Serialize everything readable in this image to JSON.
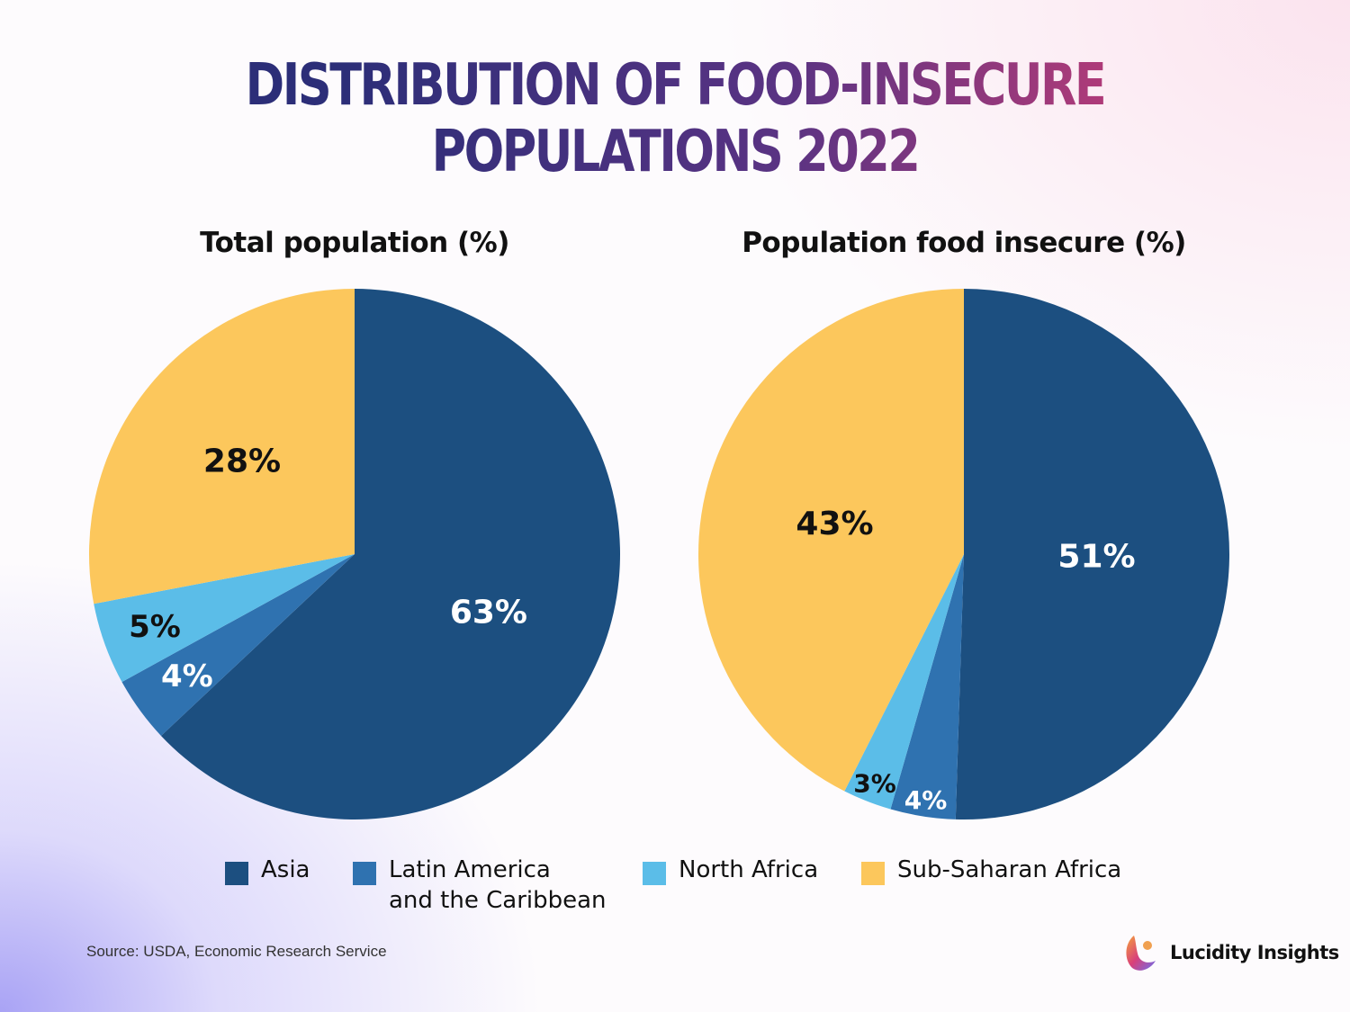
{
  "title_lines": [
    "DISTRIBUTION OF FOOD-INSECURE",
    "POPULATIONS 2022"
  ],
  "chart_data": [
    {
      "type": "pie",
      "title": "Total population (%)",
      "categories": [
        "Asia",
        "Latin America and the Caribbean",
        "North Africa",
        "Sub-Saharan Africa"
      ],
      "values": [
        63,
        4,
        5,
        28
      ],
      "labels": [
        "63%",
        "4%",
        "5%",
        "28%"
      ]
    },
    {
      "type": "pie",
      "title": "Population food insecure (%)",
      "categories": [
        "Asia",
        "Latin America and the Caribbean",
        "North Africa",
        "Sub-Saharan Africa"
      ],
      "values": [
        51,
        4,
        3,
        43
      ],
      "labels": [
        "51%",
        "4%",
        "3%",
        "43%"
      ]
    }
  ],
  "colors": {
    "Asia": "#1c4f80",
    "Latin America and the Caribbean": "#2f72b0",
    "North Africa": "#5bbde8",
    "Sub-Saharan Africa": "#fcc75c"
  },
  "legend": [
    {
      "label": "Asia",
      "color": "#1c4f80"
    },
    {
      "label": "Latin America",
      "label2": "and the Caribbean",
      "color": "#2f72b0"
    },
    {
      "label": "North Africa",
      "color": "#5bbde8"
    },
    {
      "label": "Sub-Saharan Africa",
      "color": "#fcc75c"
    }
  ],
  "legend_position": "bottom",
  "source": "Source: USDA, Economic Research Service",
  "brand": "Lucidity Insights"
}
